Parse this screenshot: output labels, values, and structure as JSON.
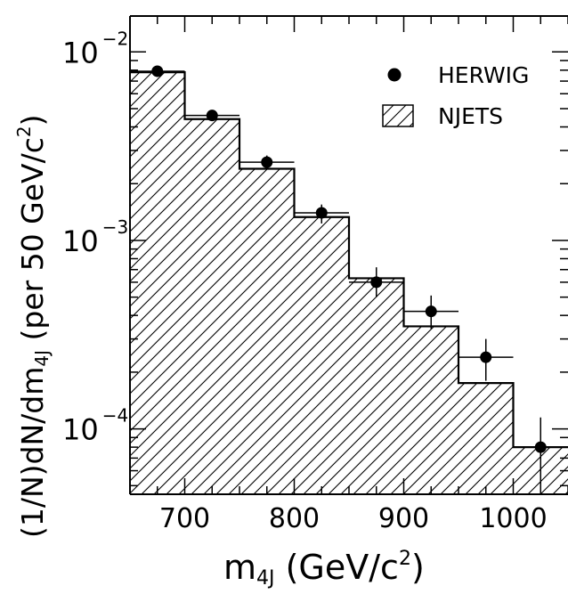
{
  "chart_data": {
    "type": "histogram-with-points",
    "x": {
      "label_main": "m",
      "label_sub": "4J",
      "label_units_open": " (GeV/c",
      "label_units_sup": "2",
      "label_units_close": ")",
      "lim": [
        650,
        1050
      ],
      "ticks": [
        700,
        800,
        900,
        1000
      ],
      "tick_labels": [
        "700",
        "800",
        "900",
        "1000"
      ]
    },
    "y": {
      "label_a": "(1/N)dN/dm",
      "label_sub": "4J",
      "label_b": " (per 50 GeV/c",
      "label_sup": "2",
      "label_c": ")",
      "scale": "log",
      "lim": [
        4.5e-05,
        0.0155
      ],
      "tick_labels": [
        {
          "value": 0.01,
          "base": "10",
          "exp": "−2"
        },
        {
          "value": 0.001,
          "base": "10",
          "exp": "−3"
        },
        {
          "value": 0.0001,
          "base": "10",
          "exp": "−4"
        }
      ]
    },
    "legend": {
      "position": "top-right",
      "entries": [
        {
          "label": "HERWIG",
          "marker": "filled-circle"
        },
        {
          "label": "NJETS",
          "marker": "hatched-box"
        }
      ]
    },
    "series": [
      {
        "name": "NJETS",
        "style": "hatched-histogram",
        "bins": [
          {
            "lo": 650,
            "hi": 700,
            "value": 0.0078
          },
          {
            "lo": 700,
            "hi": 750,
            "value": 0.0044
          },
          {
            "lo": 750,
            "hi": 800,
            "value": 0.0024
          },
          {
            "lo": 800,
            "hi": 850,
            "value": 0.00133
          },
          {
            "lo": 850,
            "hi": 900,
            "value": 0.00063
          },
          {
            "lo": 900,
            "hi": 950,
            "value": 0.00035
          },
          {
            "lo": 950,
            "hi": 1000,
            "value": 0.000175
          },
          {
            "lo": 1000,
            "hi": 1050,
            "value": 8e-05
          }
        ]
      },
      {
        "name": "HERWIG",
        "style": "points-with-errors",
        "points": [
          {
            "x": 675,
            "y": 0.0079,
            "x_err": 25,
            "y_lo": 0.0075,
            "y_hi": 0.0083
          },
          {
            "x": 725,
            "y": 0.0046,
            "x_err": 25,
            "y_lo": 0.0043,
            "y_hi": 0.0049
          },
          {
            "x": 775,
            "y": 0.0026,
            "x_err": 25,
            "y_lo": 0.00238,
            "y_hi": 0.00282
          },
          {
            "x": 825,
            "y": 0.0014,
            "x_err": 25,
            "y_lo": 0.00123,
            "y_hi": 0.00155
          },
          {
            "x": 875,
            "y": 0.0006,
            "x_err": 25,
            "y_lo": 0.0005,
            "y_hi": 0.00072
          },
          {
            "x": 925,
            "y": 0.00042,
            "x_err": 25,
            "y_lo": 0.00034,
            "y_hi": 0.00051
          },
          {
            "x": 975,
            "y": 0.00024,
            "x_err": 25,
            "y_lo": 0.00018,
            "y_hi": 0.0003
          },
          {
            "x": 1025,
            "y": 8e-05,
            "x_err": 25,
            "y_lo": 4.5e-05,
            "y_hi": 0.000115
          }
        ]
      }
    ]
  }
}
